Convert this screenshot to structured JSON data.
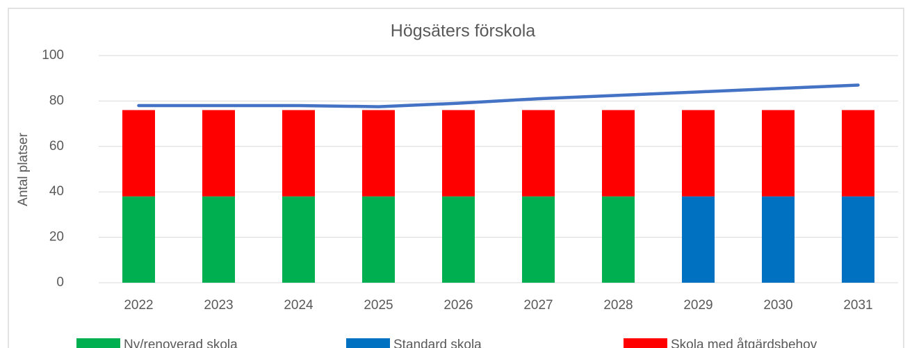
{
  "chart_data": {
    "type": "bar",
    "stacked": true,
    "title": "Högsäters förskola",
    "y_label": "Antal platser",
    "categories": [
      "2022",
      "2023",
      "2024",
      "2025",
      "2026",
      "2027",
      "2028",
      "2029",
      "2030",
      "2031"
    ],
    "series": [
      {
        "name": "Ny/renoverad skola",
        "color": "#00b050",
        "values": [
          38,
          38,
          38,
          38,
          38,
          38,
          38,
          0,
          0,
          0
        ]
      },
      {
        "name": "Standard skola",
        "color": "#0070c0",
        "values": [
          0,
          0,
          0,
          0,
          0,
          0,
          0,
          38,
          38,
          38
        ]
      },
      {
        "name": "Skola med åtgärdsbehov",
        "color": "#ff0000",
        "values": [
          38,
          38,
          38,
          38,
          38,
          38,
          38,
          38,
          38,
          38
        ]
      },
      {
        "type": "line",
        "color": "#4472c4",
        "values": [
          78,
          78,
          78,
          77.5,
          79,
          81,
          82.5,
          84,
          85.5,
          87
        ]
      }
    ],
    "ylim": [
      0,
      100
    ],
    "yticks": [
      0,
      20,
      40,
      60,
      80,
      100
    ],
    "grid": true,
    "legend": "bottom"
  }
}
